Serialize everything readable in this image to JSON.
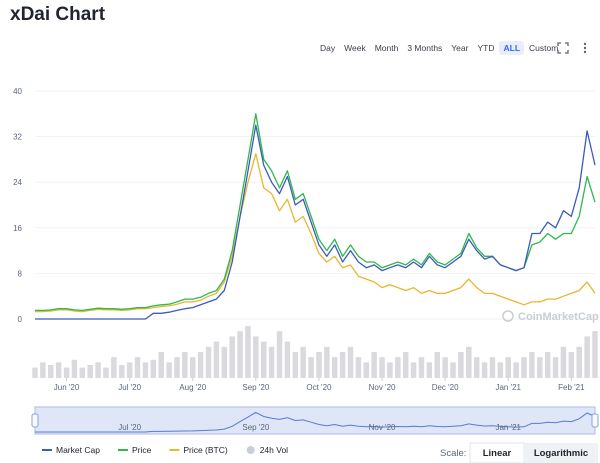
{
  "header": {
    "title": "xDai Chart"
  },
  "range_buttons": [
    "Day",
    "Week",
    "Month",
    "3 Months",
    "Year",
    "YTD",
    "ALL",
    "Custom"
  ],
  "selected_range": "ALL",
  "chart_data": {
    "type": "line",
    "categories": [
      null,
      null,
      null,
      null,
      "Jun '20",
      null,
      null,
      null,
      null,
      null,
      null,
      null,
      "Jul '20",
      null,
      null,
      null,
      null,
      null,
      null,
      null,
      "Aug '20",
      null,
      null,
      null,
      null,
      null,
      null,
      null,
      "Sep '20",
      null,
      null,
      null,
      null,
      null,
      null,
      null,
      "Oct '20",
      null,
      null,
      null,
      null,
      null,
      null,
      null,
      "Nov '20",
      null,
      null,
      null,
      null,
      null,
      null,
      null,
      "Dec '20",
      null,
      null,
      null,
      null,
      null,
      null,
      null,
      "Jan '21",
      null,
      null,
      null,
      null,
      null,
      null,
      null,
      "Feb '21",
      null,
      null,
      null
    ],
    "ylim": [
      0,
      40
    ],
    "yticks": [
      0,
      8,
      16,
      24,
      32,
      40
    ],
    "grid": true,
    "series": [
      {
        "name": "Market Cap",
        "color": "#3b5bbd",
        "values": [
          0,
          0,
          0,
          0,
          0,
          0,
          0,
          0,
          0,
          0,
          0,
          0,
          0,
          0,
          0,
          1,
          1,
          1.2,
          1.5,
          1.8,
          2,
          2.5,
          3,
          3.5,
          5,
          10,
          18,
          26,
          34,
          27,
          24,
          22,
          25,
          20,
          21,
          17,
          13,
          11,
          13,
          10,
          12,
          10,
          9,
          9.5,
          8.5,
          9,
          9.5,
          9,
          10,
          9,
          11,
          9.5,
          9,
          10,
          11,
          14,
          12,
          10.5,
          11,
          9.5,
          9,
          8.5,
          9,
          15,
          15,
          17,
          16,
          19,
          18,
          23,
          33,
          27
        ]
      },
      {
        "name": "Price",
        "color": "#2fb84f",
        "values": [
          1.5,
          1.5,
          1.6,
          1.8,
          1.8,
          1.6,
          1.5,
          1.7,
          1.9,
          1.8,
          1.8,
          1.7,
          1.8,
          2,
          2,
          2.3,
          2.5,
          2.6,
          3,
          3.5,
          3.5,
          3.8,
          4.5,
          5,
          7,
          12,
          20,
          28,
          36,
          28,
          26,
          23,
          26,
          21,
          22,
          18,
          14,
          12,
          14,
          11,
          13,
          11,
          10,
          10,
          9,
          9.5,
          10,
          9.5,
          10.5,
          9.5,
          11.5,
          10,
          9.5,
          10.5,
          11.5,
          15,
          12.5,
          11,
          11,
          9.5,
          9,
          8.5,
          9,
          13,
          13.5,
          15,
          14,
          15,
          15,
          18,
          25,
          20.5
        ]
      },
      {
        "name": "Price (BTC)",
        "color": "#e9b631",
        "values": [
          1.3,
          1.3,
          1.4,
          1.6,
          1.6,
          1.4,
          1.3,
          1.5,
          1.7,
          1.6,
          1.6,
          1.5,
          1.6,
          1.8,
          1.8,
          2,
          2.2,
          2.3,
          2.6,
          3,
          3,
          3.3,
          4,
          4.5,
          6.5,
          11,
          18,
          24,
          29,
          23,
          22,
          19,
          21,
          17,
          18,
          15,
          11.5,
          10,
          11,
          9,
          9.5,
          7.5,
          7,
          6.5,
          5.5,
          6,
          5.5,
          5,
          5.5,
          4.5,
          5,
          4.5,
          4.5,
          5,
          5.5,
          7,
          5.5,
          4.5,
          4.5,
          4,
          3.5,
          3,
          2.5,
          3,
          3,
          3.5,
          3.5,
          4,
          4.5,
          5,
          6.5,
          4.5
        ]
      }
    ],
    "volume": {
      "name": "24h Vol",
      "color": "#d9d9de",
      "values": [
        2,
        3,
        2.5,
        3,
        2,
        3.5,
        2,
        2.5,
        3,
        2,
        4,
        2.5,
        3,
        4,
        3,
        3.5,
        5,
        3,
        4,
        5,
        4,
        5,
        6,
        7,
        6,
        8,
        9,
        10,
        8,
        7,
        6,
        9,
        7,
        5,
        6,
        4,
        5,
        6,
        4,
        5,
        6,
        4,
        3,
        5,
        4,
        3,
        4,
        5,
        3,
        4,
        3,
        5,
        4,
        3,
        5,
        6,
        4,
        3,
        4,
        3,
        4,
        3,
        4,
        5,
        4,
        5,
        4,
        6,
        5,
        6,
        8,
        9
      ]
    },
    "watermark": "CoinMarketCap",
    "navigator_labels": [
      {
        "index": 12,
        "label": "Jul '20"
      },
      {
        "index": 28,
        "label": "Sep '20"
      },
      {
        "index": 44,
        "label": "Nov '20"
      },
      {
        "index": 60,
        "label": "Jan '21"
      }
    ],
    "scale_label": "Scale:",
    "scale_options": [
      "Linear",
      "Logarithmic"
    ],
    "scale_selected": "Linear"
  }
}
